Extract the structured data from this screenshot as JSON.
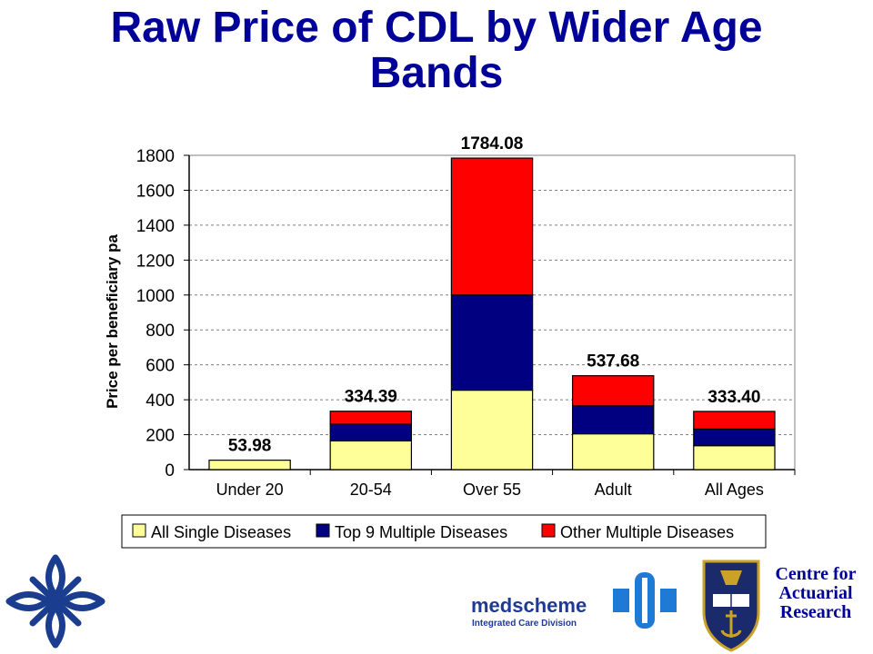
{
  "title_line1": "Raw Price of CDL by Wider Age",
  "title_line2": "Bands",
  "chart_data": {
    "type": "bar",
    "stacked": true,
    "categories": [
      "Under 20",
      "20-54",
      "Over 55",
      "Adult",
      "All Ages"
    ],
    "series": [
      {
        "name": "All Single Diseases",
        "color": "#FFFF99",
        "values": [
          53.98,
          165,
          455,
          205,
          137
        ]
      },
      {
        "name": "Top 9 Multiple Diseases",
        "color": "#000080",
        "values": [
          0,
          95,
          545,
          160,
          95
        ]
      },
      {
        "name": "Other Multiple Diseases",
        "color": "#FF0000",
        "values": [
          0,
          74.39,
          784.08,
          172.68,
          101.4
        ]
      }
    ],
    "totals": [
      "53.98",
      "334.39",
      "1784.08",
      "537.68",
      "333.40"
    ],
    "ylabel": "Price per beneficiary pa",
    "ylim": [
      0,
      1800
    ],
    "yticks": [
      0,
      200,
      400,
      600,
      800,
      1000,
      1200,
      1400,
      1600,
      1800
    ],
    "grid": true,
    "legend_position": "bottom"
  },
  "logos": {
    "left": "cross-logo-icon",
    "medscheme_name": "medscheme",
    "medscheme_division": "Integrated Care Division",
    "crest": "uct-crest-icon",
    "centre_lines": [
      "Centre for",
      "Actuarial",
      "Research"
    ]
  }
}
